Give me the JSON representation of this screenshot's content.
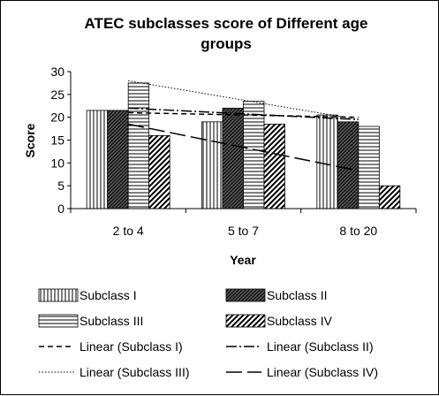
{
  "chart_data": {
    "type": "bar",
    "title_line1": "ATEC subclasses score of Different age",
    "title_line2": "groups",
    "xlabel": "Year",
    "ylabel": "Score",
    "ylim": [
      0,
      30
    ],
    "yticks": [
      0,
      5,
      10,
      15,
      20,
      25,
      30
    ],
    "categories": [
      "2 to 4",
      "5 to 7",
      "8 to 20"
    ],
    "series": [
      {
        "name": "Subclass I",
        "values": [
          21.5,
          19,
          20.5
        ]
      },
      {
        "name": "Subclass II",
        "values": [
          21.5,
          22,
          19
        ]
      },
      {
        "name": "Subclass III",
        "values": [
          27.5,
          23.5,
          18
        ]
      },
      {
        "name": "Subclass IV",
        "values": [
          16,
          18.5,
          5
        ]
      }
    ],
    "trendlines": [
      {
        "name": "Linear (Subclass I)",
        "start": 21,
        "end": 20
      },
      {
        "name": "Linear (Subclass II)",
        "start": 22,
        "end": 19.5
      },
      {
        "name": "Linear (Subclass III)",
        "start": 28,
        "end": 19.5
      },
      {
        "name": "Linear (Subclass IV)",
        "start": 18.5,
        "end": 8.3
      }
    ],
    "grid": false,
    "legend_position": "bottom"
  }
}
